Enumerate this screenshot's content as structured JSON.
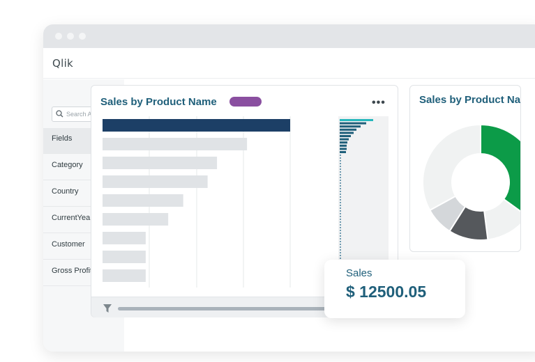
{
  "app": {
    "logo": "Qlik"
  },
  "sidebar": {
    "search_placeholder": "Search Assets",
    "items": [
      {
        "label": "Fields"
      },
      {
        "label": "Category"
      },
      {
        "label": "Country"
      },
      {
        "label": "CurrentYearFlag"
      },
      {
        "label": "Customer"
      },
      {
        "label": "Gross Profit"
      }
    ]
  },
  "card1": {
    "title": "Sales by Product Name",
    "more_label": "•••"
  },
  "card2": {
    "title": "Sales by Product Name"
  },
  "tooltip": {
    "label": "Sales",
    "value": "$ 12500.05"
  },
  "colors": {
    "title": "#1f5f7a",
    "bar_highlight": "#1c3f66",
    "bar_muted": "#e0e3e6",
    "pill": "#8a4fa0",
    "accent_green": "#0c9b48",
    "minimap_teal": "#26b7bc"
  },
  "chart_data": [
    {
      "type": "bar",
      "orientation": "horizontal",
      "categories": [
        "",
        "",
        "",
        "",
        "",
        "",
        "",
        "",
        ""
      ],
      "values": [
        100,
        77,
        61,
        56,
        43,
        35,
        23,
        23,
        23
      ],
      "highlighted_index": 0
    },
    {
      "type": "pie",
      "variant": "donut",
      "values": [
        35,
        13,
        11,
        8,
        33
      ],
      "colors": [
        "#0c9b48",
        "#f0f2f2",
        "#55585c",
        "#d4d7da",
        "#f0f2f2"
      ]
    }
  ]
}
